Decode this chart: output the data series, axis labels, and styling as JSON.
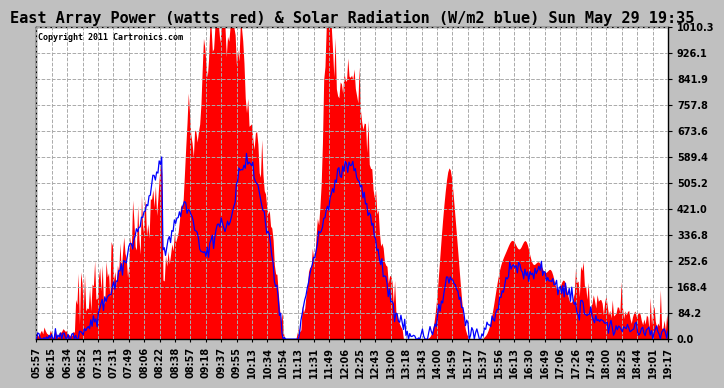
{
  "title": "East Array Power (watts red) & Solar Radiation (W/m2 blue) Sun May 29 19:35",
  "copyright": "Copyright 2011 Cartronics.com",
  "y_ticks": [
    0.0,
    84.2,
    168.4,
    252.6,
    336.8,
    421.0,
    505.2,
    589.4,
    673.6,
    757.8,
    841.9,
    926.1,
    1010.3
  ],
  "ymax": 1010.3,
  "ymin": 0.0,
  "bg_color": "#c0c0c0",
  "plot_bg": "#ffffff",
  "grid_color": "#aaaaaa",
  "red_color": "#ff0000",
  "blue_color": "#0000ff",
  "title_fontsize": 11,
  "tick_fontsize": 7,
  "x_labels": [
    "05:57",
    "06:15",
    "06:34",
    "06:52",
    "07:13",
    "07:31",
    "07:49",
    "08:06",
    "08:22",
    "08:38",
    "08:57",
    "09:18",
    "09:37",
    "09:55",
    "10:13",
    "10:34",
    "10:54",
    "11:13",
    "11:31",
    "11:49",
    "12:06",
    "12:25",
    "12:43",
    "13:00",
    "13:18",
    "13:43",
    "14:00",
    "14:59",
    "15:17",
    "15:37",
    "15:56",
    "16:13",
    "16:30",
    "16:49",
    "17:06",
    "17:26",
    "17:43",
    "18:00",
    "18:25",
    "18:44",
    "19:01",
    "19:17"
  ]
}
